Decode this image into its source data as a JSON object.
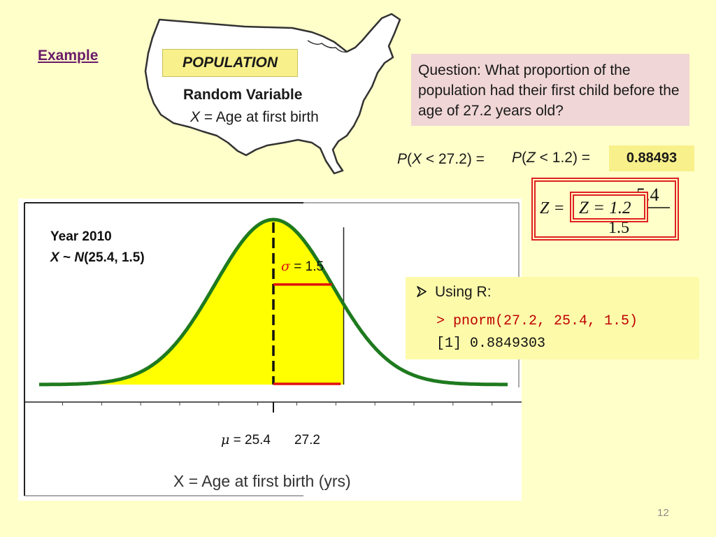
{
  "header": {
    "example_label": "Example",
    "population_label": "POPULATION",
    "random_variable_title": "Random Variable",
    "variable_symbol": "X",
    "variable_definition": " = Age at first birth"
  },
  "question": {
    "text": "Question:  What proportion of the population had their first child before the age of 27.2 years old?"
  },
  "probability": {
    "lhs_symbol": "P",
    "lhs_var": "X",
    "lhs_cond": " < 27.2) = ",
    "rhs_symbol": "P",
    "rhs_var": "Z",
    "rhs_cond": " < 1.2) = ",
    "answer": "0.88493"
  },
  "z_formula": {
    "lhs": "Z =",
    "boxed": "Z = 1.2",
    "numerator_fragment": "5.4",
    "denominator_fragment": "1.5"
  },
  "chart": {
    "year_label": "Year 2010",
    "dist_var": "X",
    "dist_tilde": " ~ ",
    "dist_name": "N",
    "dist_params": "(25.4, 1.5)",
    "sigma_symbol": "σ",
    "sigma_value": " = 1.5",
    "mu_symbol": "μ",
    "mu_value": " = 25.4",
    "x_value_label": "27.2",
    "xlabel": "X = Age at first birth (yrs)",
    "colors": {
      "curve": "#1e7a1e",
      "fill": "#ffff00",
      "marker": "#e01010",
      "mean_line": "#111111"
    }
  },
  "chart_data": {
    "type": "area",
    "title": "Year 2010",
    "distribution": "normal",
    "mean": 25.4,
    "sd": 1.5,
    "shaded_upper": 27.2,
    "xlabel": "X = Age at first birth (yrs)",
    "xlim": [
      19.4,
      31.4
    ],
    "ylim": [
      0,
      0.275
    ],
    "x_tick_labels": [
      "25.4",
      "27.2"
    ],
    "grid": false
  },
  "r_section": {
    "heading": "Using R:",
    "command": "> pnorm(27.2, 25.4, 1.5)",
    "output": "[1] 0.8849303"
  },
  "footer": {
    "page_number": "12"
  }
}
